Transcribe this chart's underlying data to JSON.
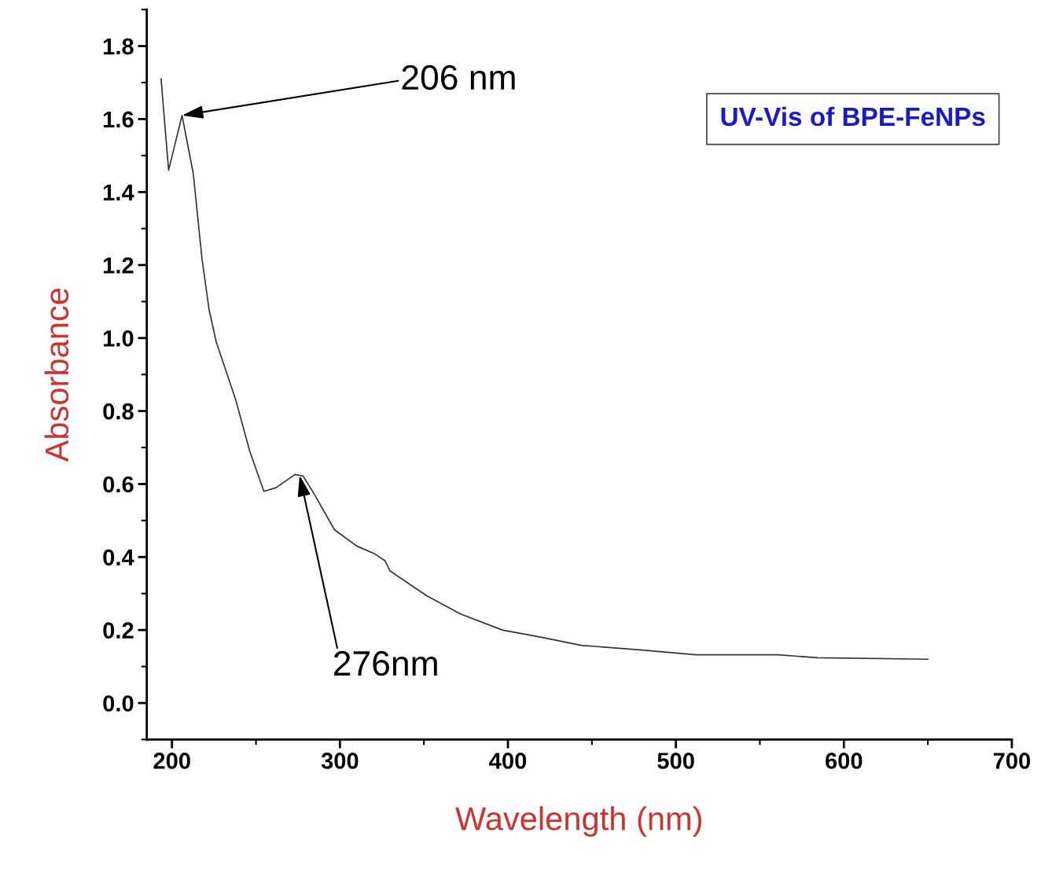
{
  "chart_data": {
    "type": "line",
    "xlabel": "Wavelength (nm)",
    "ylabel": "Absorbance",
    "x": [
      193.5,
      198,
      206,
      212.7,
      217.8,
      222,
      226.3,
      238,
      246.3,
      254.7,
      262,
      273.2,
      278,
      285,
      296.7,
      310,
      320.2,
      326.8,
      329.6,
      340,
      351.6,
      371.8,
      396.7,
      420,
      443.7,
      480,
      512,
      561,
      584.5,
      650
    ],
    "series": [
      {
        "color": "#333333",
        "values": [
          1.71,
          1.46,
          1.61,
          1.45,
          1.22,
          1.08,
          0.99,
          0.83,
          0.69,
          0.58,
          0.59,
          0.626,
          0.622,
          0.57,
          0.475,
          0.43,
          0.41,
          0.39,
          0.363,
          0.33,
          0.294,
          0.244,
          0.2,
          0.18,
          0.158,
          0.145,
          0.132,
          0.132,
          0.124,
          0.12
        ]
      }
    ],
    "xlim": [
      185,
      700
    ],
    "ylim": [
      -0.1,
      1.9
    ],
    "xticks": [
      {
        "value": 200,
        "label": "200"
      },
      {
        "value": 300,
        "label": "300"
      },
      {
        "value": 400,
        "label": "400"
      },
      {
        "value": 500,
        "label": "500"
      },
      {
        "value": 600,
        "label": "600"
      },
      {
        "value": 700,
        "label": "700"
      }
    ],
    "yticks": [
      {
        "value": 0,
        "label": "0.0"
      },
      {
        "value": 0.2,
        "label": "0.2"
      },
      {
        "value": 0.4,
        "label": "0.4"
      },
      {
        "value": 0.6,
        "label": "0.6"
      },
      {
        "value": 0.8,
        "label": "0.8"
      },
      {
        "value": 1.0,
        "label": "1.0"
      },
      {
        "value": 1.2,
        "label": "1.2"
      },
      {
        "value": 1.4,
        "label": "1.4"
      },
      {
        "value": 1.6,
        "label": "1.6"
      },
      {
        "value": 1.8,
        "label": "1.8"
      }
    ],
    "annotations": [
      {
        "text": "206 nm",
        "x": 206,
        "y": 1.61
      },
      {
        "text": "276nm",
        "x": 276,
        "y": 0.624
      },
      "UV-Vis of BPE-FeNPs"
    ],
    "grid": false,
    "marker": "none",
    "line_style": "solid"
  }
}
